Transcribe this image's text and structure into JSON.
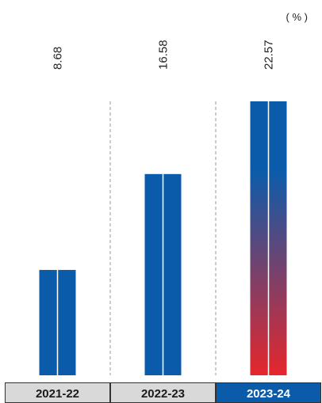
{
  "chart_data": {
    "type": "bar",
    "unit_label": "( % )",
    "categories": [
      "2021-22",
      "2022-23",
      "2023-24"
    ],
    "values": [
      8.68,
      16.58,
      22.57
    ],
    "value_labels": [
      "8.68",
      "16.58",
      "22.57"
    ],
    "highlight_index": 2,
    "ylim": [
      0,
      22.57
    ],
    "grid": "dashed vertical separators between categories",
    "colors": {
      "bar": "#0A5CAB",
      "highlight_gradient_top": "#0A5CAB",
      "highlight_gradient_bottom": "#E6262C",
      "bar_center_line": "#ffffff",
      "separator": "#999999",
      "category_box_fill": "#D9D9D9",
      "category_box_border": "#333333",
      "highlight_box_fill": "#0A5CAB",
      "category_text": "#1a1a1a",
      "highlight_text": "#ffffff"
    }
  }
}
